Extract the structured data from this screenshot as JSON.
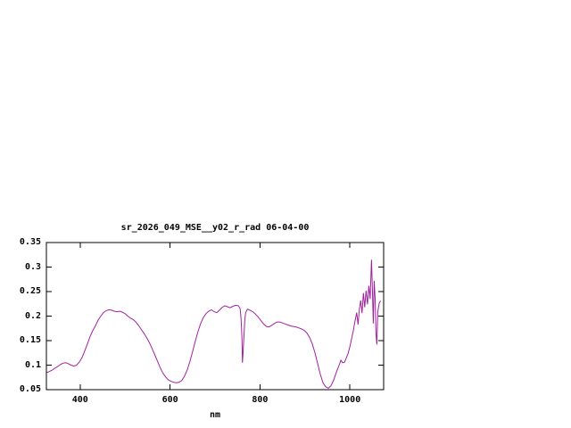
{
  "chart": {
    "colors": {
      "line": "#a020a0",
      "axis": "#000000",
      "text": "#000000",
      "background": "#ffffff"
    }
  },
  "chart_data": {
    "type": "line",
    "title": "sr_2026_049_MSE__y02_r_rad 06-04-00",
    "xlabel": "nm",
    "ylabel": "",
    "xlim": [
      325,
      1075
    ],
    "ylim": [
      0.05,
      0.35
    ],
    "grid": false,
    "legend": "none",
    "xticks": [
      400,
      600,
      800,
      1000
    ],
    "xtick_labels": [
      "400",
      "600",
      "800",
      "1000"
    ],
    "yticks": [
      0.05,
      0.1,
      0.15,
      0.2,
      0.25,
      0.3,
      0.35
    ],
    "ytick_labels": [
      "0.05",
      "0.1",
      "0.15",
      "0.2",
      "0.25",
      "0.3",
      "0.35"
    ],
    "series": [
      {
        "x": [
          326,
          332,
          338,
          344,
          350,
          356,
          362,
          368,
          374,
          380,
          386,
          392,
          398,
          404,
          410,
          416,
          422,
          428,
          434,
          440,
          446,
          452,
          458,
          464,
          470,
          476,
          482,
          488,
          494,
          500,
          506,
          512,
          518,
          524,
          530,
          536,
          542,
          548,
          554,
          560,
          566,
          572,
          578,
          584,
          590,
          596,
          602,
          608,
          614,
          620,
          626,
          632,
          638,
          644,
          650,
          656,
          662,
          668,
          674,
          680,
          686,
          692,
          698,
          704,
          710,
          716,
          722,
          728,
          734,
          740,
          746,
          752,
          756,
          758,
          760,
          761,
          762,
          764,
          766,
          768,
          772,
          778,
          784,
          790,
          796,
          802,
          808,
          814,
          820,
          826,
          832,
          838,
          844,
          850,
          856,
          862,
          868,
          874,
          880,
          886,
          892,
          898,
          904,
          910,
          916,
          922,
          928,
          934,
          940,
          946,
          952,
          958,
          964,
          970,
          976,
          980,
          984,
          988,
          992,
          996,
          1000,
          1004,
          1008,
          1012,
          1015,
          1018,
          1021,
          1024,
          1027,
          1030,
          1033,
          1036,
          1039,
          1042,
          1045,
          1048,
          1050,
          1052,
          1054,
          1056,
          1058,
          1060,
          1062,
          1065,
          1068
        ],
        "y": [
          0.085,
          0.087,
          0.09,
          0.094,
          0.097,
          0.101,
          0.104,
          0.105,
          0.103,
          0.1,
          0.098,
          0.1,
          0.106,
          0.115,
          0.128,
          0.143,
          0.158,
          0.17,
          0.18,
          0.192,
          0.2,
          0.207,
          0.211,
          0.213,
          0.212,
          0.21,
          0.209,
          0.21,
          0.208,
          0.205,
          0.2,
          0.196,
          0.193,
          0.188,
          0.181,
          0.173,
          0.165,
          0.156,
          0.146,
          0.134,
          0.121,
          0.108,
          0.095,
          0.084,
          0.076,
          0.07,
          0.067,
          0.065,
          0.064,
          0.065,
          0.069,
          0.077,
          0.09,
          0.107,
          0.127,
          0.148,
          0.168,
          0.185,
          0.197,
          0.205,
          0.21,
          0.213,
          0.209,
          0.207,
          0.212,
          0.218,
          0.221,
          0.219,
          0.217,
          0.22,
          0.222,
          0.221,
          0.215,
          0.195,
          0.155,
          0.105,
          0.118,
          0.155,
          0.19,
          0.207,
          0.214,
          0.212,
          0.209,
          0.204,
          0.198,
          0.191,
          0.184,
          0.179,
          0.178,
          0.181,
          0.185,
          0.188,
          0.188,
          0.186,
          0.184,
          0.182,
          0.18,
          0.179,
          0.178,
          0.176,
          0.174,
          0.171,
          0.166,
          0.157,
          0.144,
          0.126,
          0.104,
          0.082,
          0.064,
          0.056,
          0.053,
          0.058,
          0.07,
          0.086,
          0.1,
          0.11,
          0.105,
          0.106,
          0.115,
          0.124,
          0.138,
          0.155,
          0.172,
          0.193,
          0.207,
          0.183,
          0.214,
          0.232,
          0.206,
          0.247,
          0.218,
          0.252,
          0.224,
          0.262,
          0.235,
          0.315,
          0.255,
          0.185,
          0.272,
          0.238,
          0.165,
          0.142,
          0.208,
          0.226,
          0.231
        ]
      }
    ]
  }
}
